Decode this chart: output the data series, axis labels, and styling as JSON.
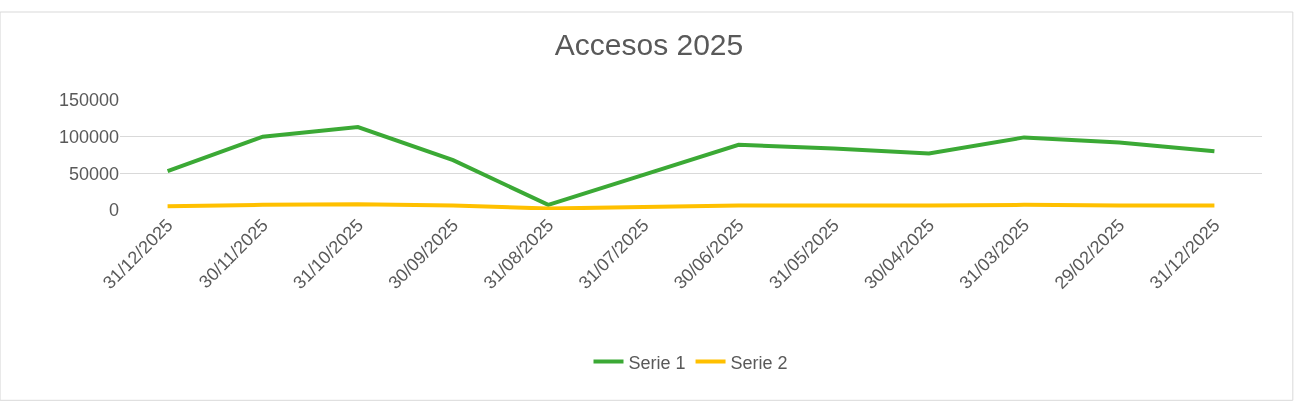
{
  "chart_data": {
    "type": "line",
    "title": "Accesos 2025",
    "categories": [
      "31/12/2025",
      "30/11/2025",
      "31/10/2025",
      "30/09/2025",
      "31/08/2025",
      "31/07/2025",
      "30/06/2025",
      "31/05/2025",
      "30/04/2025",
      "31/03/2025",
      "29/02/2025",
      "31/12/2025"
    ],
    "series": [
      {
        "name": "Serie 1",
        "color": "#3ba935",
        "values": [
          53000,
          100000,
          113000,
          68000,
          7000,
          48000,
          89000,
          84000,
          77000,
          99000,
          92000,
          80000
        ]
      },
      {
        "name": "Serie 2",
        "color": "#ffc000",
        "values": [
          5000,
          7000,
          8000,
          6000,
          2000,
          4000,
          6000,
          6000,
          6000,
          7000,
          6000,
          6000
        ]
      }
    ],
    "ylim": [
      0,
      150000
    ],
    "yticks": [
      0,
      50000,
      100000,
      150000
    ],
    "grid": "y",
    "legend": "bottom",
    "marker": "none",
    "line_style": "solid"
  }
}
